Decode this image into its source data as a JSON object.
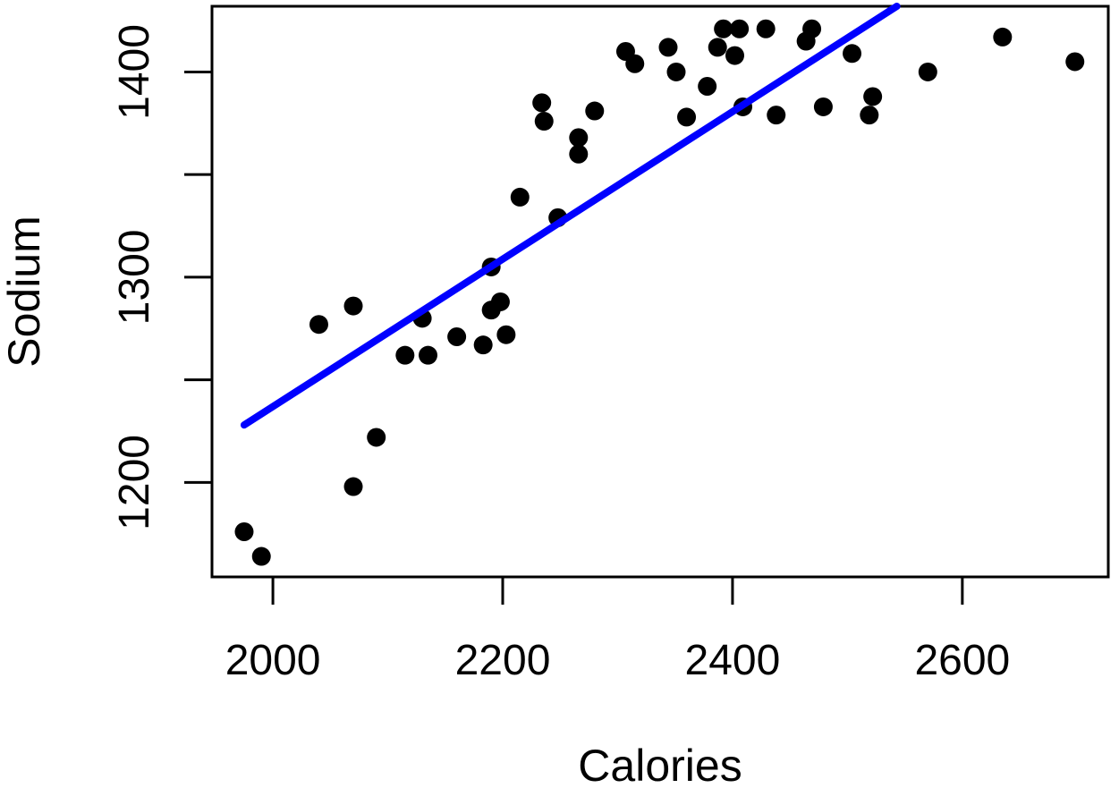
{
  "figure": {
    "background": "#FFFFFF"
  },
  "chart_data": {
    "type": "scatter",
    "title": "",
    "xlabel": "Calories",
    "ylabel": "Sodium",
    "xlim": [
      1947,
      2727
    ],
    "ylim": [
      1154,
      1432
    ],
    "grid": false,
    "point_color": "#000000",
    "axis_color": "#000000",
    "line_color": "#0000FF",
    "x_ticks": [
      {
        "value": 2000,
        "label": "2000"
      },
      {
        "value": 2200,
        "label": "2200"
      },
      {
        "value": 2400,
        "label": "2400"
      },
      {
        "value": 2600,
        "label": "2600"
      }
    ],
    "y_ticks": [
      {
        "value": 1200,
        "label": "1200"
      },
      {
        "value": 1250,
        "label": ""
      },
      {
        "value": 1300,
        "label": "1300"
      },
      {
        "value": 1350,
        "label": ""
      },
      {
        "value": 1400,
        "label": "1400"
      }
    ],
    "points": [
      [
        1975,
        1176
      ],
      [
        1990,
        1164
      ],
      [
        2070,
        1198
      ],
      [
        2090,
        1222
      ],
      [
        2040,
        1277
      ],
      [
        2070,
        1286
      ],
      [
        2130,
        1280
      ],
      [
        2115,
        1262
      ],
      [
        2135,
        1262
      ],
      [
        2160,
        1271
      ],
      [
        2183,
        1267
      ],
      [
        2203,
        1272
      ],
      [
        2190,
        1305
      ],
      [
        2198,
        1288
      ],
      [
        2190,
        1284
      ],
      [
        2215,
        1339
      ],
      [
        2248,
        1329
      ],
      [
        2234,
        1385
      ],
      [
        2236,
        1376
      ],
      [
        2280,
        1381
      ],
      [
        2266,
        1368
      ],
      [
        2266,
        1360
      ],
      [
        2307,
        1410
      ],
      [
        2315,
        1404
      ],
      [
        2344,
        1412
      ],
      [
        2351,
        1400
      ],
      [
        2360,
        1378
      ],
      [
        2378,
        1393
      ],
      [
        2392,
        1421
      ],
      [
        2406,
        1421
      ],
      [
        2387,
        1412
      ],
      [
        2402,
        1408
      ],
      [
        2429,
        1421
      ],
      [
        2409,
        1383
      ],
      [
        2438,
        1379
      ],
      [
        2469,
        1421
      ],
      [
        2464,
        1415
      ],
      [
        2504,
        1409
      ],
      [
        2479,
        1383
      ],
      [
        2522,
        1388
      ],
      [
        2519,
        1379
      ],
      [
        2570,
        1400
      ],
      [
        2635,
        1417
      ],
      [
        2698,
        1405
      ]
    ],
    "regression_line": {
      "x": [
        1975,
        2543
      ],
      "y": [
        1228,
        1432
      ]
    }
  }
}
